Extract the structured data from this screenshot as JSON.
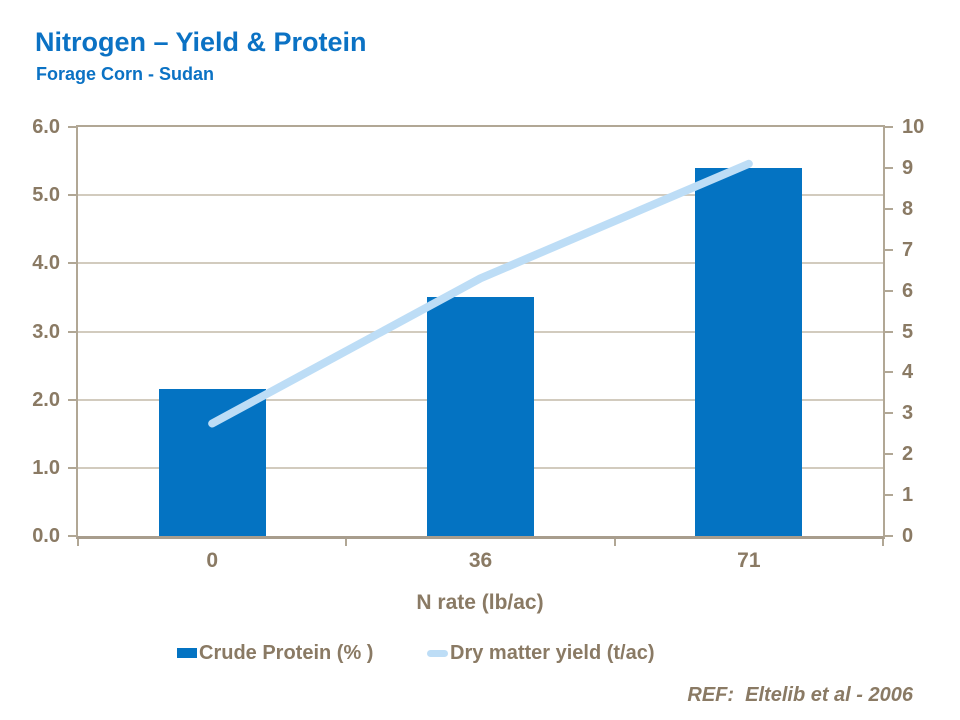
{
  "header": {
    "title": "Nitrogen – Yield & Protein",
    "subtitle": "Forage Corn - Sudan"
  },
  "chart_data": {
    "type": "bar",
    "subtype": "bar+line combo, dual axis",
    "categories": [
      "0",
      "36",
      "71"
    ],
    "series": [
      {
        "name": "Crude Protein (% )",
        "type": "bar",
        "axis": "left",
        "values": [
          2.15,
          3.5,
          5.4
        ],
        "color": "#0473c2"
      },
      {
        "name": "Dry matter yield (t/ac)",
        "type": "line",
        "axis": "right",
        "values": [
          2.75,
          6.3,
          9.1
        ],
        "color": "#bdddf6"
      }
    ],
    "xlabel": "N rate (lb/ac)",
    "left_axis": {
      "min": 0,
      "max": 6,
      "step": 1,
      "tick_labels": [
        "0.0",
        "1.0",
        "2.0",
        "3.0",
        "4.0",
        "5.0",
        "6.0"
      ]
    },
    "right_axis": {
      "min": 0,
      "max": 10,
      "step": 1,
      "tick_labels": [
        "0",
        "1",
        "2",
        "3",
        "4",
        "5",
        "6",
        "7",
        "8",
        "9",
        "10"
      ]
    },
    "grid": "horizontal gridlines at each left-axis unit",
    "legend_position": "bottom"
  },
  "footer": {
    "ref": "REF:  Eltelib et al - 2006"
  },
  "colors": {
    "title_blue": "#0b72c4",
    "bar_blue": "#0473c2",
    "line_light_blue": "#bdddf6",
    "axis_text": "#8a7a64",
    "axis_line": "#b1a795",
    "gridline": "#d2cbbe"
  }
}
